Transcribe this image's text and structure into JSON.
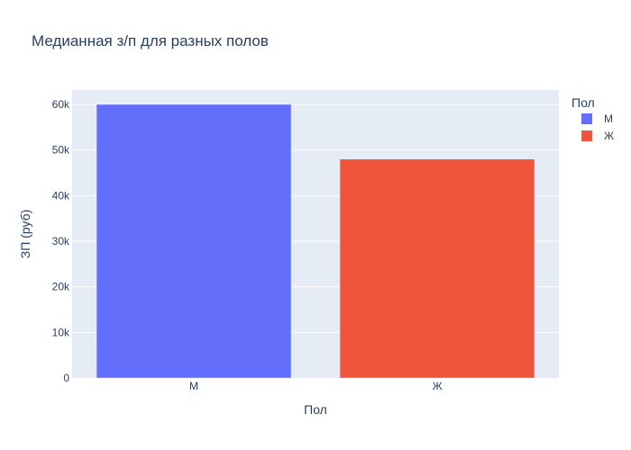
{
  "chart_data": {
    "type": "bar",
    "title": "Медианная з/п для разных полов",
    "xlabel": "Пол",
    "ylabel": "ЗП (руб)",
    "categories": [
      "М",
      "Ж"
    ],
    "series": [
      {
        "name": "М",
        "category": "М",
        "value": 60000,
        "color": "#636efa"
      },
      {
        "name": "Ж",
        "category": "Ж",
        "value": 48000,
        "color": "#ef553b"
      }
    ],
    "ylim": [
      0,
      63158
    ],
    "yticks": [
      0,
      10000,
      20000,
      30000,
      40000,
      50000,
      60000
    ],
    "ytick_labels": [
      "0",
      "10k",
      "20k",
      "30k",
      "40k",
      "50k",
      "60k"
    ],
    "legend_title": "Пол",
    "legend_position": "top-right",
    "grid": true,
    "plot_background": "#e5ecf6"
  }
}
